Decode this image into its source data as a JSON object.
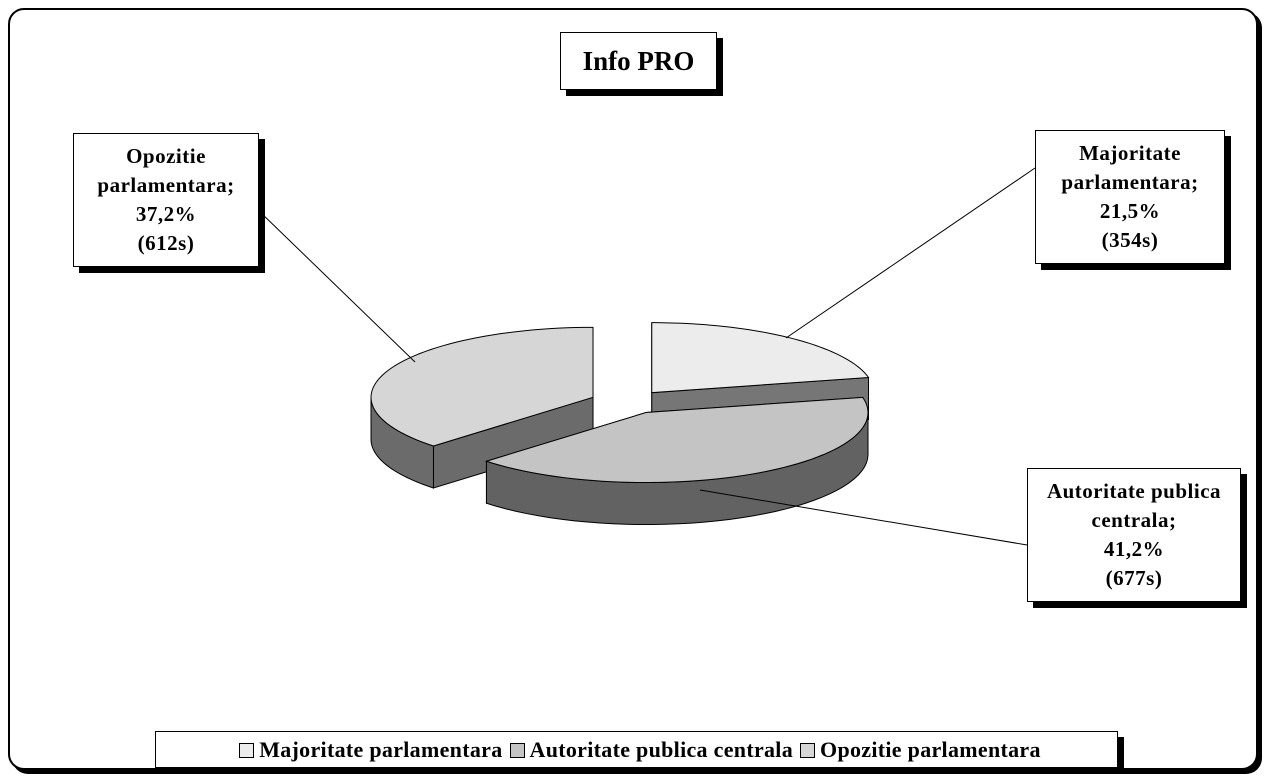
{
  "chart_data": {
    "type": "pie",
    "title": "Info PRO",
    "categories": [
      "Majoritate parlamentara",
      "Autoritate publica centrala",
      "Opozitie parlamentara"
    ],
    "values": [
      21.5,
      41.2,
      37.2
    ],
    "value_labels": [
      "21,5%",
      "41,2%",
      "37,2%"
    ],
    "duration_labels": [
      "(354s)",
      "(677s)",
      "(612s)"
    ],
    "label_separator": ";",
    "colors": [
      "#ececec",
      "#c4c4c4",
      "#d6d6d6"
    ],
    "legend": "bottom"
  }
}
